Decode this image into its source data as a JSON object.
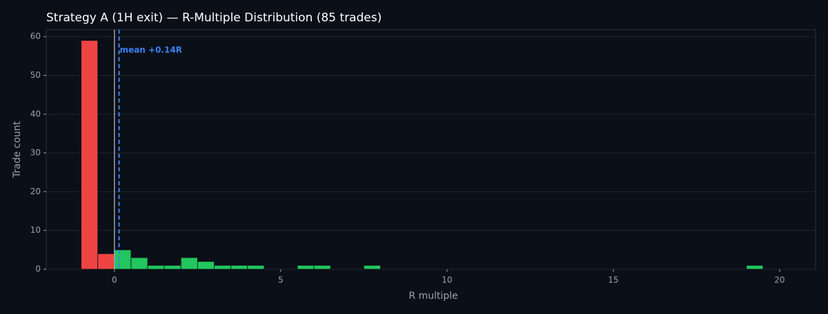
{
  "chart_data": {
    "type": "histogram",
    "title": "Strategy A (1H exit) — R-Multiple Distribution (85 trades)",
    "x_label": "R multiple",
    "y_label": "Trade count",
    "bins": [
      -1,
      -0.5,
      0,
      0.5,
      1,
      1.5,
      2,
      2.5,
      3,
      3.5,
      4,
      4.5,
      5,
      5.5,
      6,
      6.5,
      7,
      7.5,
      8,
      8.5,
      9,
      9.5,
      10,
      10.5,
      11,
      11.5,
      12,
      12.5,
      13,
      13.5,
      14,
      14.5,
      15,
      15.5,
      16,
      16.5,
      17,
      17.5,
      18,
      18.5,
      19,
      19.5
    ],
    "counts": [
      59,
      4,
      5,
      3,
      1,
      1,
      3,
      2,
      1,
      1,
      1,
      0,
      0,
      1,
      1,
      0,
      0,
      1,
      0,
      0,
      0,
      0,
      0,
      0,
      0,
      0,
      0,
      0,
      0,
      0,
      0,
      0,
      0,
      0,
      0,
      0,
      0,
      0,
      0,
      0,
      1
    ],
    "negative_color": "#ef4444",
    "positive_color": "#22c55e",
    "zero_line": 0,
    "zero_line_color": "#9aa3b2",
    "mean": 0.14,
    "mean_label": "mean +0.14R",
    "mean_color": "#3b82f6",
    "xlim": [
      -2.05,
      21.08
    ],
    "ylim": [
      0,
      61.8
    ],
    "xticks": [
      0,
      5,
      10,
      15,
      20
    ],
    "yticks": [
      0,
      10,
      20,
      30,
      40,
      50,
      60
    ],
    "grid": true
  }
}
